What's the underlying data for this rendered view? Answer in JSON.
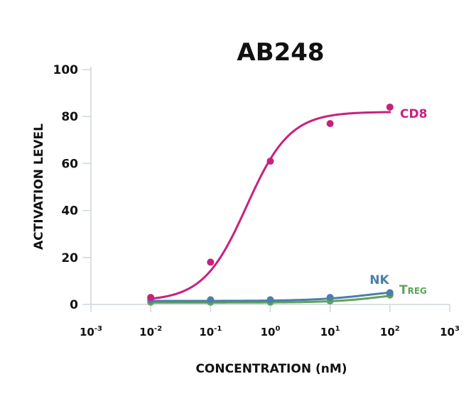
{
  "chart_data": {
    "type": "line",
    "title": "AB248",
    "xlabel": "CONCENTRATION (nM)",
    "ylabel": "ACTIVATION LEVEL",
    "xscale": "log",
    "xlim": [
      0.001,
      1000
    ],
    "ylim": [
      0,
      100
    ],
    "grid": false,
    "x_ticks": [
      {
        "base": "10",
        "exp": "-3",
        "value": 0.001
      },
      {
        "base": "10",
        "exp": "-2",
        "value": 0.01
      },
      {
        "base": "10",
        "exp": "-1",
        "value": 0.1
      },
      {
        "base": "10",
        "exp": "0",
        "value": 1
      },
      {
        "base": "10",
        "exp": "1",
        "value": 10
      },
      {
        "base": "10",
        "exp": "2",
        "value": 100
      },
      {
        "base": "10",
        "exp": "3",
        "value": 1000
      }
    ],
    "y_ticks": [
      "0",
      "20",
      "40",
      "60",
      "80",
      "100"
    ],
    "y_tick_values": [
      0,
      20,
      40,
      60,
      80,
      100
    ],
    "series": [
      {
        "name": "CD8",
        "color": "#c8207f",
        "x": [
          0.01,
          0.1,
          1,
          10,
          100
        ],
        "y": [
          3,
          18,
          61,
          77,
          84
        ],
        "fit": {
          "bottom": 1.5,
          "top": 82,
          "ec50": 0.4,
          "hill": 1.2
        }
      },
      {
        "name": "NK",
        "color": "#4a7fa8",
        "x": [
          0.01,
          0.1,
          1,
          10,
          100
        ],
        "y": [
          2,
          2,
          2,
          3,
          5
        ],
        "fit": {
          "bottom": 1.5,
          "top": 7,
          "ec50": 50,
          "hill": 0.9
        }
      },
      {
        "name": "Treg",
        "color": "#5fa35a",
        "x": [
          0.01,
          0.1,
          1,
          10,
          100
        ],
        "y": [
          1,
          1,
          1,
          1.5,
          4
        ],
        "fit": {
          "bottom": 0.8,
          "top": 6,
          "ec50": 80,
          "hill": 1.0
        }
      }
    ]
  }
}
